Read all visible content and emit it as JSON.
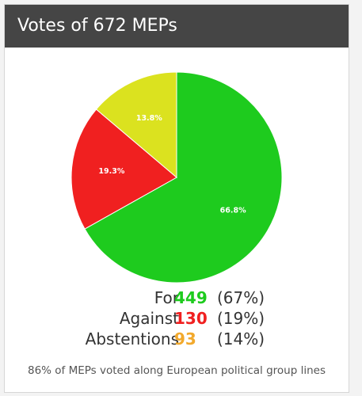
{
  "header": {
    "title": "Votes of 672 MEPs"
  },
  "colors": {
    "for": "#1ecb1e",
    "against": "#f02020",
    "abstentions": "#dbe21f",
    "abstentions_text": "#f2a92c"
  },
  "chart_data": {
    "type": "pie",
    "slices": [
      {
        "name": "For",
        "value": 66.8,
        "label": "66.8%",
        "color": "#1ecb1e"
      },
      {
        "name": "Against",
        "value": 19.3,
        "label": "19.3%",
        "color": "#f02020"
      },
      {
        "name": "Abstentions",
        "value": 13.8,
        "label": "13.8%",
        "color": "#dbe21f"
      }
    ],
    "start_angle_deg": 0,
    "direction": "clockwise"
  },
  "tally": {
    "for": {
      "label": "For",
      "count": "449",
      "pct": "(67%)"
    },
    "against": {
      "label": "Against",
      "count": "130",
      "pct": "(19%)"
    },
    "abstentions": {
      "label": "Abstentions",
      "count": "93",
      "pct": "(14%)"
    }
  },
  "footnote": "86% of MEPs voted along European political group lines"
}
